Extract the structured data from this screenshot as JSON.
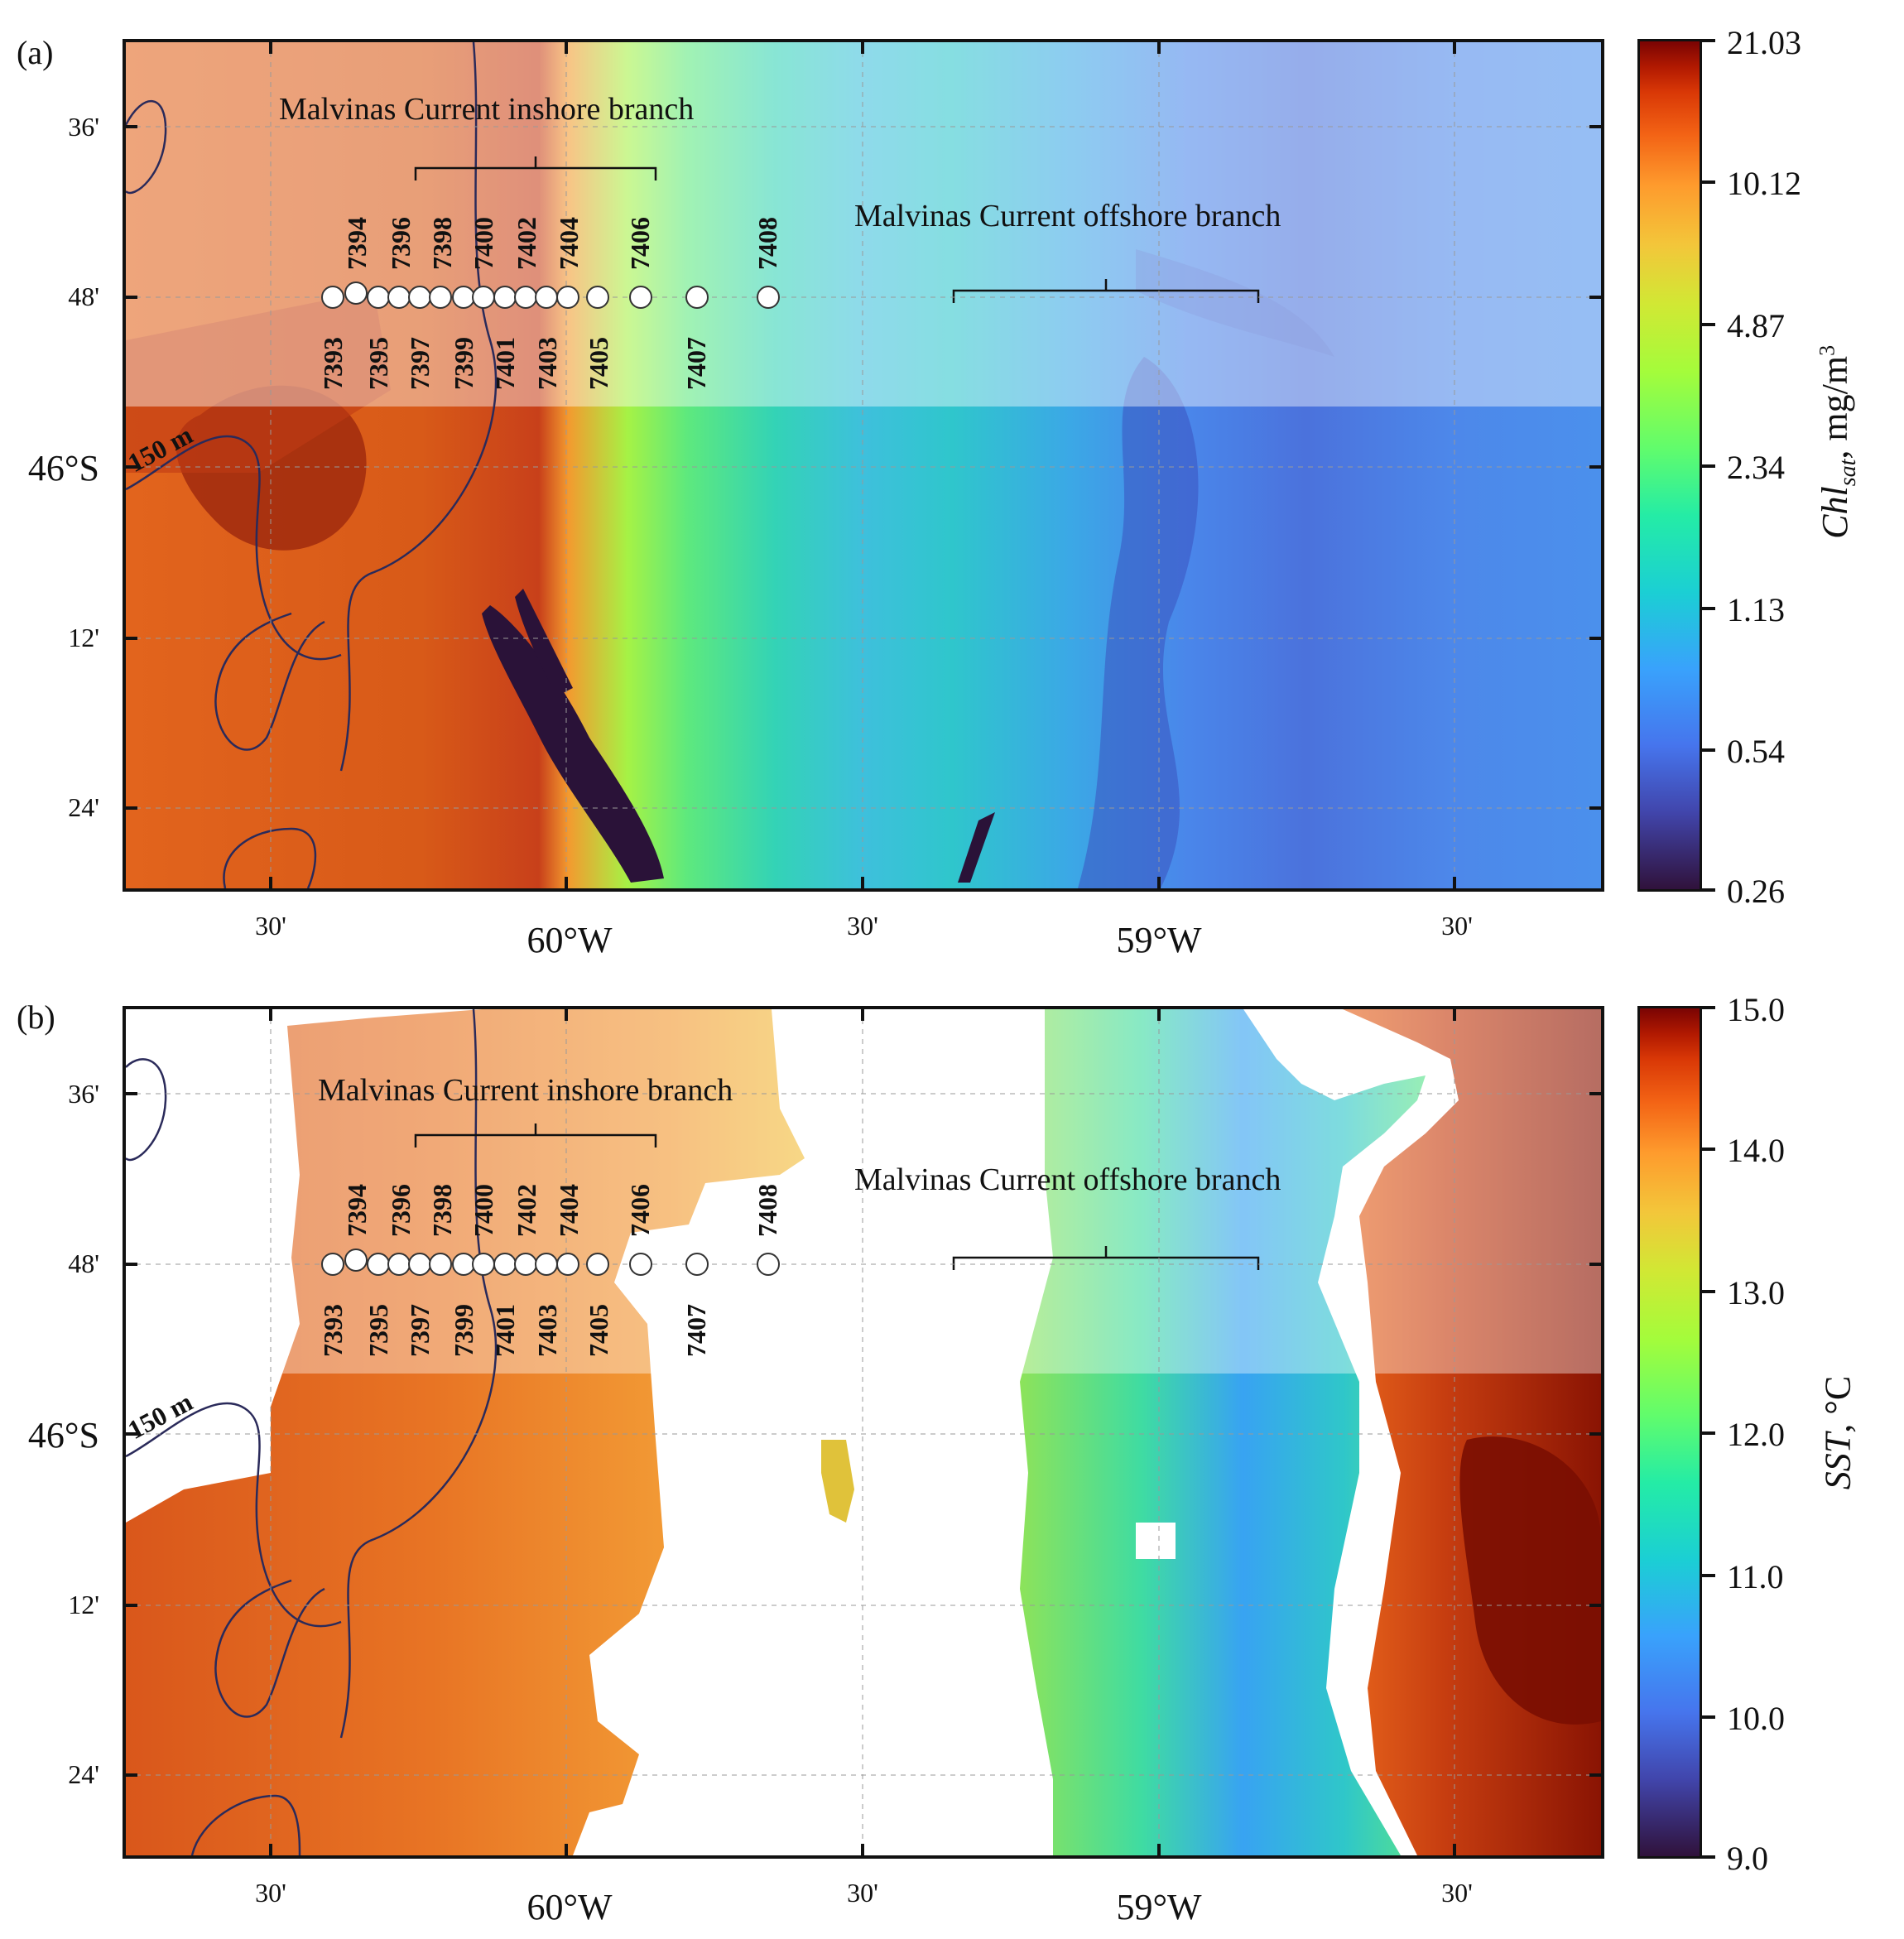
{
  "panels": [
    {
      "label": "(a)",
      "colorbar_title_main": "Chl",
      "colorbar_title_sub": "sat",
      "colorbar_title_unit": ", mg/m",
      "colorbar_title_sup": "3",
      "colorbar_ticks": [
        "21.03",
        "10.12",
        "4.87",
        "2.34",
        "1.13",
        "0.54",
        "0.26"
      ],
      "isobath_label": "150 m",
      "inshore_label": "Malvinas Current inshore branch",
      "offshore_label": "Malvinas Current offshore branch"
    },
    {
      "label": "(b)",
      "colorbar_title_main": "SST",
      "colorbar_title_sub": "",
      "colorbar_title_unit": ", °C",
      "colorbar_title_sup": "",
      "colorbar_ticks": [
        "15.0",
        "14.0",
        "13.0",
        "12.0",
        "11.0",
        "10.0",
        "9.0"
      ],
      "isobath_label": "150 m",
      "inshore_label": "Malvinas Current inshore branch",
      "offshore_label": "Malvinas Current offshore branch"
    }
  ],
  "lat_labels": [
    "36'",
    "48'",
    "46°S",
    "12'",
    "24'"
  ],
  "lon_labels": [
    "30'",
    "60°W",
    "30'",
    "59°W",
    "30'"
  ],
  "stations_upper": [
    "7394",
    "7396",
    "7398",
    "7400",
    "7402",
    "7404",
    "7406",
    "7408"
  ],
  "stations_lower": [
    "7393",
    "7395",
    "7397",
    "7399",
    "7401",
    "7403",
    "7405",
    "7407"
  ],
  "colors": {
    "frame": "#111111",
    "station_fill": "#ffffff",
    "isobath": "#2a2a5a",
    "no_data": "#ffffff"
  }
}
